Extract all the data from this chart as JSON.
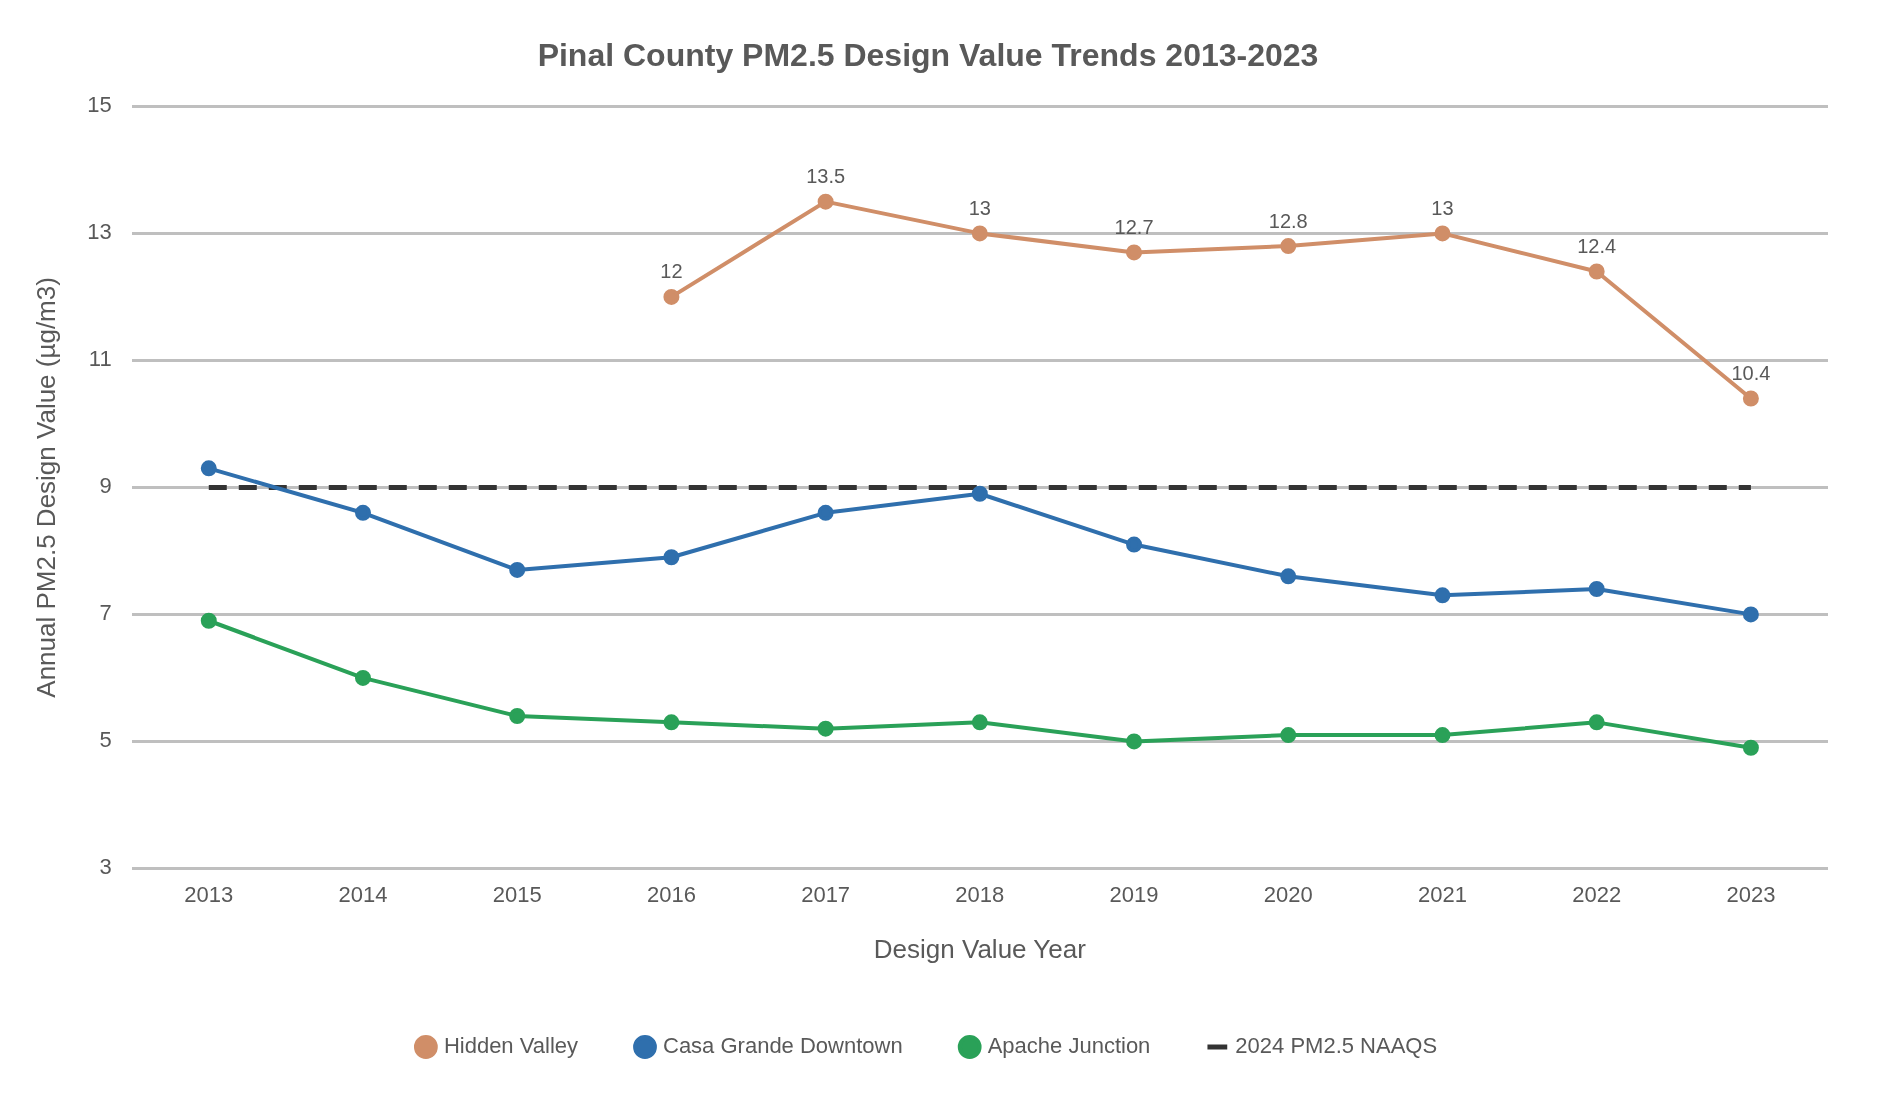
{
  "chart_data": {
    "type": "line",
    "title": "Pinal County PM2.5 Design Value Trends 2013-2023",
    "xlabel": "Design Value Year",
    "ylabel": "Annual PM2.5 Design Value (µg/m3)",
    "categories": [
      "2013",
      "2014",
      "2015",
      "2016",
      "2017",
      "2018",
      "2019",
      "2020",
      "2021",
      "2022",
      "2023"
    ],
    "ylim": [
      3,
      15
    ],
    "yticks": [
      3,
      5,
      7,
      9,
      11,
      13,
      15
    ],
    "grid": "y",
    "legend": "bottom",
    "marker": "circle",
    "line_style": "solid",
    "series": [
      {
        "name": "Hidden Valley",
        "color": "#d08e68",
        "values": [
          null,
          null,
          null,
          12,
          13.5,
          13,
          12.7,
          12.8,
          13,
          12.4,
          10.4
        ],
        "value_labels": [
          null,
          null,
          null,
          "12",
          "13.5",
          "13",
          "12.7",
          "12.8",
          "13",
          "12.4",
          "10.4"
        ]
      },
      {
        "name": "Casa Grande Downtown",
        "color": "#2f6fad",
        "values": [
          9.3,
          8.6,
          7.7,
          7.9,
          8.6,
          8.9,
          8.1,
          7.6,
          7.3,
          7.4,
          7.0
        ]
      },
      {
        "name": "Apache Junction",
        "color": "#2aa158",
        "values": [
          6.9,
          6.0,
          5.4,
          5.3,
          5.2,
          5.3,
          5.0,
          5.1,
          5.1,
          5.3,
          4.9
        ]
      },
      {
        "name": "2024 PM2.5 NAAQS",
        "color": "#333333",
        "values": [
          9,
          9,
          9,
          9,
          9,
          9,
          9,
          9,
          9,
          9,
          9
        ],
        "marker": "none",
        "line_style": "dashed"
      }
    ]
  }
}
